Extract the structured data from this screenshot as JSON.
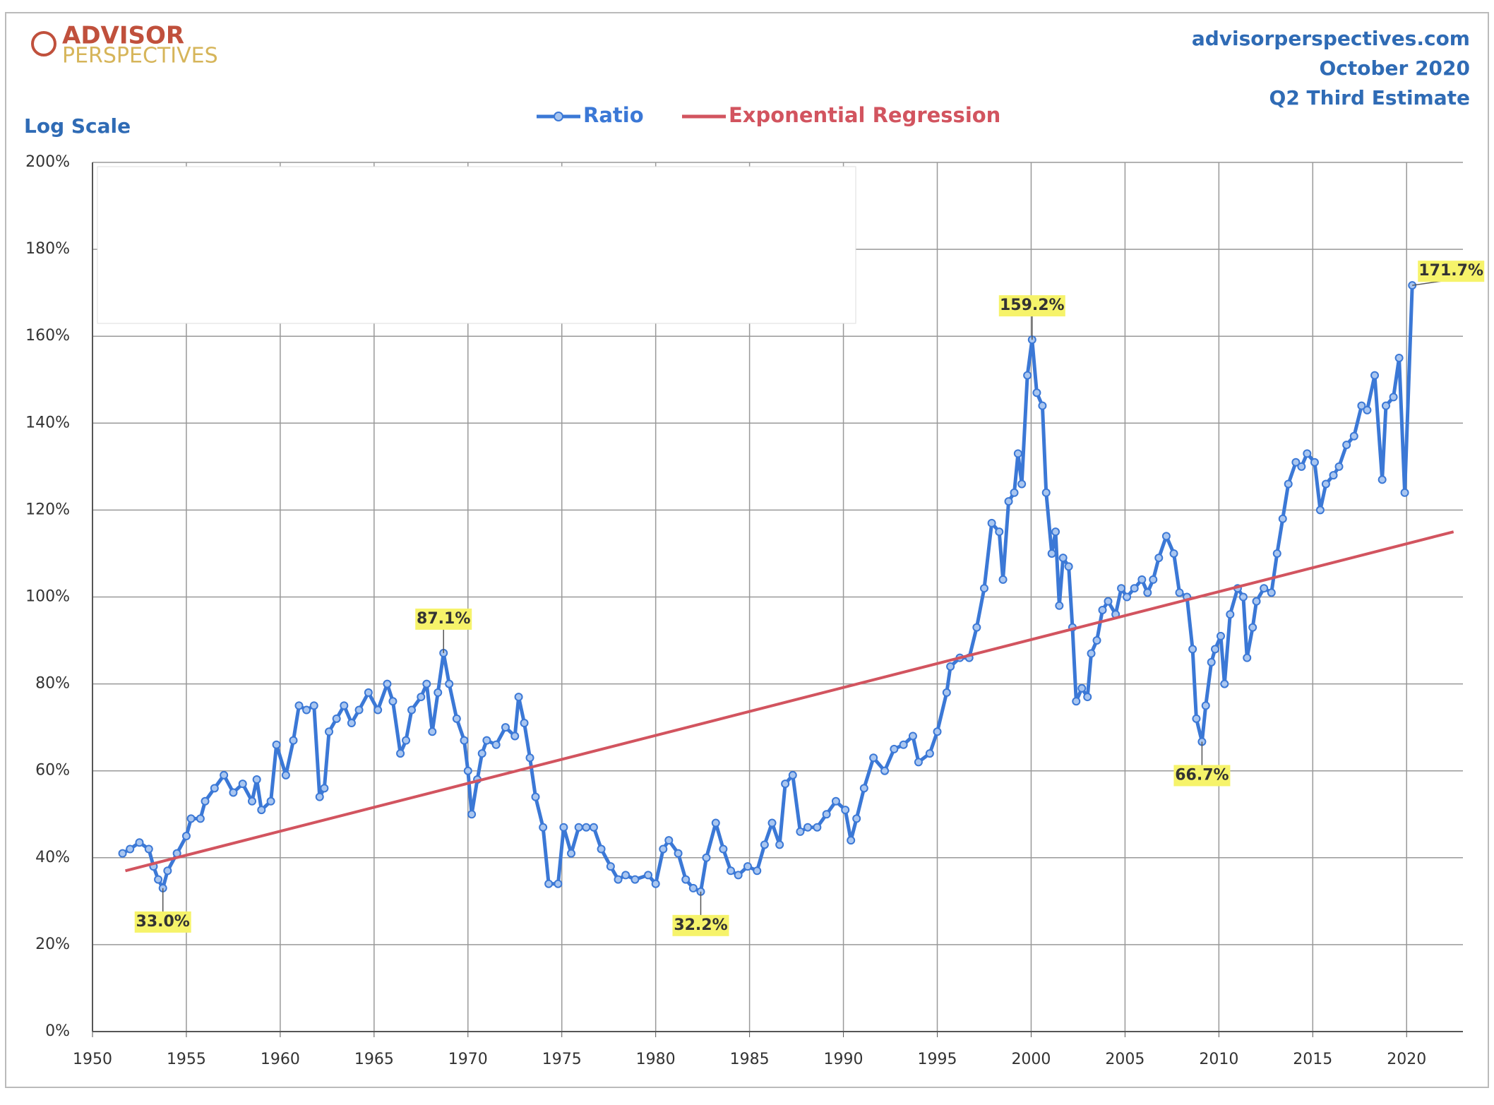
{
  "chart_data": {
    "type": "line",
    "logo": {
      "line1": "ADVISOR",
      "line2": "PERSPECTIVES"
    },
    "source": "advisorperspectives.com",
    "date": "October 2020",
    "subtitle": "Q2 Third Estimate",
    "scale_note": "Log Scale",
    "xlim": [
      1950,
      2023
    ],
    "xticks": [
      1950,
      1955,
      1960,
      1965,
      1970,
      1975,
      1980,
      1985,
      1990,
      1995,
      2000,
      2005,
      2010,
      2015,
      2020
    ],
    "ylim": [
      0,
      200
    ],
    "yticks": [
      {
        "value": 0,
        "label": "0%"
      },
      {
        "value": 20,
        "label": "20%"
      },
      {
        "value": 40,
        "label": "40%"
      },
      {
        "value": 60,
        "label": "60%"
      },
      {
        "value": 80,
        "label": "80%"
      },
      {
        "value": 100,
        "label": "100%"
      },
      {
        "value": 120,
        "label": "120%"
      },
      {
        "value": 140,
        "label": "140%"
      },
      {
        "value": 160,
        "label": "160%"
      },
      {
        "value": 180,
        "label": "180%"
      },
      {
        "value": 200,
        "label": "200%"
      }
    ],
    "grid": true,
    "series": [
      {
        "name": "Ratio",
        "color": "#3b78d6",
        "markers": true,
        "x": [
          1951.6,
          1952,
          1952.5,
          1953,
          1953.25,
          1953.5,
          1953.75,
          1954,
          1954.5,
          1955,
          1955.25,
          1955.75,
          1956,
          1956.5,
          1957,
          1957.5,
          1958,
          1958.5,
          1958.75,
          1959,
          1959.5,
          1959.8,
          1960.3,
          1960.7,
          1961,
          1961.4,
          1961.8,
          1962.1,
          1962.35,
          1962.6,
          1963,
          1963.4,
          1963.8,
          1964.2,
          1964.7,
          1965.2,
          1965.7,
          1966,
          1966.4,
          1966.7,
          1967,
          1967.5,
          1967.8,
          1968.1,
          1968.4,
          1968.7,
          1969,
          1969.4,
          1969.8,
          1970,
          1970.2,
          1970.5,
          1970.75,
          1971,
          1971.5,
          1972,
          1972.5,
          1972.7,
          1973,
          1973.3,
          1973.6,
          1974,
          1974.3,
          1974.8,
          1975.1,
          1975.5,
          1975.9,
          1976.3,
          1976.7,
          1977.1,
          1977.6,
          1978,
          1978.4,
          1978.9,
          1979.6,
          1980,
          1980.4,
          1980.7,
          1981.2,
          1981.6,
          1982,
          1982.4,
          1982.7,
          1983.2,
          1983.6,
          1984,
          1984.4,
          1984.9,
          1985.4,
          1985.8,
          1986.2,
          1986.6,
          1986.9,
          1987.3,
          1987.7,
          1988.1,
          1988.6,
          1989.1,
          1989.6,
          1990.1,
          1990.4,
          1990.7,
          1991.1,
          1991.6,
          1992.2,
          1992.7,
          1993.2,
          1993.7,
          1994,
          1994.6,
          1995,
          1995.5,
          1995.7,
          1996.2,
          1996.7,
          1997.1,
          1997.5,
          1997.9,
          1998.3,
          1998.5,
          1998.8,
          1999.1,
          1999.3,
          1999.5,
          1999.8,
          2000.05,
          2000.3,
          2000.6,
          2000.8,
          2001.1,
          2001.3,
          2001.5,
          2001.7,
          2002,
          2002.2,
          2002.4,
          2002.7,
          2003,
          2003.2,
          2003.5,
          2003.8,
          2004.1,
          2004.5,
          2004.8,
          2005.1,
          2005.5,
          2005.9,
          2006.2,
          2006.5,
          2006.8,
          2007.2,
          2007.6,
          2007.9,
          2008.3,
          2008.6,
          2008.8,
          2009.1,
          2009.3,
          2009.6,
          2009.8,
          2010.1,
          2010.3,
          2010.6,
          2011,
          2011.3,
          2011.5,
          2011.8,
          2012,
          2012.4,
          2012.8,
          2013.1,
          2013.4,
          2013.7,
          2014.1,
          2014.4,
          2014.7,
          2015.1,
          2015.4,
          2015.7,
          2016.1,
          2016.4,
          2016.8,
          2017.2,
          2017.6,
          2017.9,
          2018.3,
          2018.7,
          2018.9,
          2019.3,
          2019.6,
          2019.9,
          2020.3
        ],
        "values": [
          41,
          42,
          43.5,
          42,
          38,
          35,
          33.0,
          37,
          41,
          45,
          49,
          49,
          53,
          56,
          59,
          55,
          57,
          53,
          58,
          51,
          53,
          66,
          59,
          67,
          75,
          74,
          75,
          54,
          56,
          69,
          72,
          75,
          71,
          74,
          78,
          74,
          80,
          76,
          64,
          67,
          74,
          77,
          80,
          69,
          78,
          87.1,
          80,
          72,
          67,
          60,
          50,
          58,
          64,
          67,
          66,
          70,
          68,
          77,
          71,
          63,
          54,
          47,
          34,
          34,
          47,
          41,
          47,
          47,
          47,
          42,
          38,
          35,
          36,
          35,
          36,
          34,
          42,
          44,
          41,
          35,
          33,
          32.2,
          40,
          48,
          42,
          37,
          36,
          38,
          37,
          43,
          48,
          43,
          57,
          59,
          46,
          47,
          47,
          50,
          53,
          51,
          44,
          49,
          56,
          63,
          60,
          65,
          66,
          68,
          62,
          64,
          69,
          78,
          84,
          86,
          86,
          93,
          102,
          117,
          115,
          104,
          122,
          124,
          133,
          126,
          151,
          159.2,
          147,
          144,
          124,
          110,
          115,
          98,
          109,
          107,
          93,
          76,
          79,
          77,
          87,
          90,
          97,
          99,
          96,
          102,
          100,
          102,
          104,
          101,
          104,
          109,
          114,
          110,
          101,
          100,
          88,
          72,
          66.7,
          75,
          85,
          88,
          91,
          80,
          96,
          102,
          100,
          86,
          93,
          99,
          102,
          101,
          110,
          118,
          126,
          131,
          130,
          133,
          131,
          120,
          126,
          128,
          130,
          135,
          137,
          144,
          143,
          151,
          127,
          144,
          146,
          155,
          124,
          171.7
        ]
      },
      {
        "name": "Exponential Regression",
        "color": "#d2545f",
        "markers": false,
        "x": [
          1951.75,
          2022.5
        ],
        "values": [
          37,
          115
        ]
      }
    ],
    "annotations": [
      {
        "label": "33.0%",
        "x": 1953.75,
        "value": 33.0
      },
      {
        "label": "87.1%",
        "x": 1968.7,
        "value": 87.1
      },
      {
        "label": "32.2%",
        "x": 1982.4,
        "value": 32.2
      },
      {
        "label": "159.2%",
        "x": 2000.05,
        "value": 159.2
      },
      {
        "label": "66.7%",
        "x": 2009.1,
        "value": 66.7
      },
      {
        "label": "171.7%",
        "x": 2020.3,
        "value": 171.7
      }
    ]
  }
}
